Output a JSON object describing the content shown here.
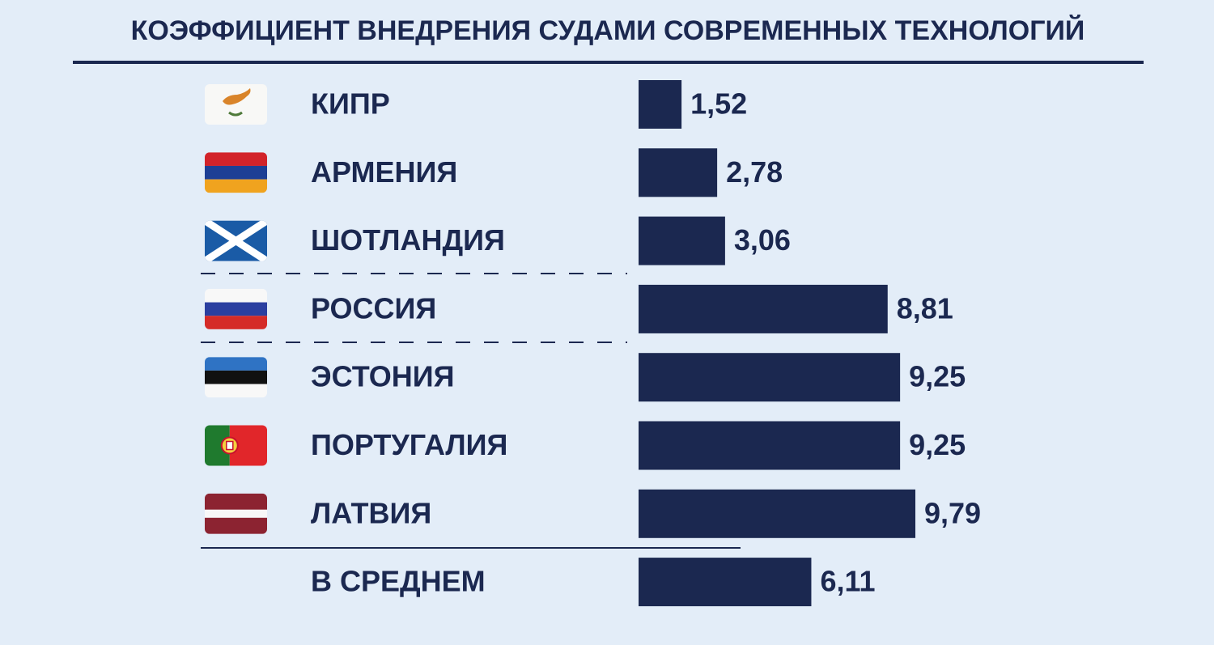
{
  "chart_data": {
    "type": "bar",
    "orientation": "horizontal",
    "title": "КОЭФФИЦИЕНТ ВНЕДРЕНИЯ СУДАМИ СОВРЕМЕННЫХ ТЕХНОЛОГИЙ",
    "categories": [
      "КИПР",
      "АРМЕНИЯ",
      "ШОТЛАНДИЯ",
      "РОССИЯ",
      "ЭСТОНИЯ",
      "ПОРТУГАЛИЯ",
      "ЛАТВИЯ",
      "В СРЕДНЕМ"
    ],
    "values": [
      1.52,
      2.78,
      3.06,
      8.81,
      9.25,
      9.25,
      9.79,
      6.11
    ],
    "value_labels": [
      "1,52",
      "2,78",
      "3,06",
      "8,81",
      "9,25",
      "9,25",
      "9,79",
      "6,11"
    ],
    "color": "#1b2850"
  }
}
